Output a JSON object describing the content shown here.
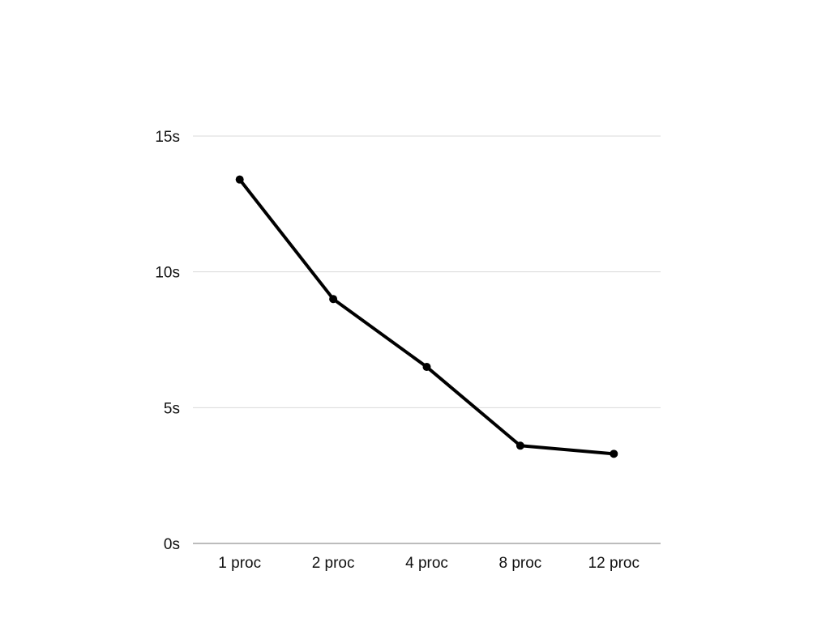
{
  "chart_data": {
    "type": "line",
    "title": "",
    "xlabel": "",
    "ylabel": "",
    "categories": [
      "1 proc",
      "2 proc",
      "4 proc",
      "8 proc",
      "12 proc"
    ],
    "series": [
      {
        "values": [
          13.4,
          9.0,
          6.5,
          3.6,
          3.3
        ],
        "color": "#000000"
      }
    ],
    "ylim": [
      0,
      15
    ],
    "y_ticks": [
      0,
      5,
      10,
      15
    ],
    "y_tick_labels": [
      "0s",
      "5s",
      "10s",
      "15s"
    ],
    "grid": true,
    "legend": "none",
    "colors": {
      "line": "#000000",
      "grid": "#d9d9d9",
      "axis": "#a6a6a6",
      "text": "#111111"
    }
  }
}
